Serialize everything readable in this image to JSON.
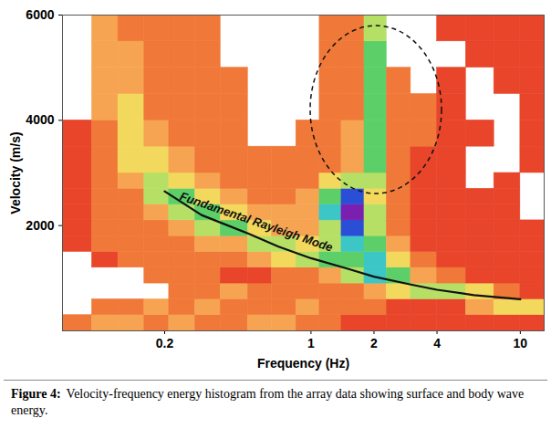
{
  "chart_data": {
    "type": "heatmap",
    "xlabel": "Frequency (Hz)",
    "ylabel": "Velocity (m/s)",
    "log": "x",
    "grid": false,
    "xlim": [
      0.065,
      13
    ],
    "xticks": [
      0.2,
      1,
      2,
      4,
      10
    ],
    "ylim": [
      0,
      6000
    ],
    "yticks": [
      2000,
      4000,
      6000
    ],
    "x_bins": [
      0.065,
      0.09,
      0.12,
      0.16,
      0.21,
      0.28,
      0.37,
      0.5,
      0.65,
      0.85,
      1.1,
      1.4,
      1.8,
      2.3,
      3,
      4,
      5.5,
      7.5,
      10,
      13
    ],
    "y_bins": [
      0,
      300,
      600,
      900,
      1200,
      1500,
      1800,
      2100,
      2400,
      2700,
      3000,
      3500,
      4000,
      4500,
      5000,
      5500,
      6000
    ],
    "energy": [
      [
        2,
        3,
        3,
        2,
        3,
        2,
        2,
        3,
        3,
        2,
        2,
        1,
        1,
        1,
        1,
        1,
        1,
        1,
        1
      ],
      [
        null,
        2,
        2,
        3,
        2,
        3,
        2,
        2,
        2,
        3,
        2,
        2,
        2,
        1,
        1,
        1,
        3,
        4,
        4
      ],
      [
        null,
        null,
        null,
        null,
        2,
        2,
        3,
        2,
        2,
        2,
        2,
        2,
        3,
        4,
        5,
        5,
        4,
        2,
        1
      ],
      [
        null,
        null,
        null,
        2,
        2,
        2,
        1,
        1,
        2,
        2,
        3,
        5,
        7,
        6,
        3,
        2,
        1,
        1,
        1
      ],
      [
        null,
        1,
        2,
        2,
        2,
        2,
        2,
        3,
        4,
        5,
        6,
        6,
        7,
        4,
        2,
        1,
        1,
        1,
        1
      ],
      [
        1,
        2,
        2,
        2,
        2,
        3,
        3,
        5,
        5,
        4,
        5,
        7,
        6,
        3,
        1,
        1,
        1,
        1,
        1
      ],
      [
        1,
        2,
        2,
        2,
        3,
        5,
        6,
        4,
        3,
        3,
        5,
        8,
        5,
        2,
        1,
        1,
        1,
        1,
        1
      ],
      [
        1,
        2,
        2,
        3,
        5,
        6,
        4,
        3,
        3,
        3,
        7,
        9,
        5,
        2,
        1,
        1,
        1,
        1,
        null
      ],
      [
        1,
        2,
        2,
        5,
        6,
        4,
        3,
        2,
        2,
        3,
        6,
        8,
        4,
        2,
        1,
        1,
        1,
        1,
        null
      ],
      [
        1,
        2,
        3,
        5,
        4,
        3,
        2,
        2,
        2,
        2,
        4,
        5,
        5,
        2,
        1,
        1,
        null,
        1,
        null
      ],
      [
        1,
        2,
        4,
        4,
        3,
        2,
        2,
        2,
        2,
        2,
        2,
        3,
        6,
        2,
        1,
        1,
        null,
        null,
        1
      ],
      [
        1,
        2,
        4,
        3,
        2,
        2,
        2,
        null,
        null,
        2,
        2,
        3,
        6,
        2,
        2,
        1,
        1,
        null,
        1
      ],
      [
        null,
        3,
        4,
        2,
        2,
        2,
        2,
        null,
        null,
        null,
        2,
        2,
        6,
        2,
        2,
        1,
        null,
        null,
        1
      ],
      [
        null,
        3,
        3,
        2,
        2,
        2,
        2,
        null,
        null,
        null,
        2,
        2,
        6,
        2,
        null,
        1,
        null,
        1,
        1
      ],
      [
        null,
        3,
        3,
        2,
        2,
        2,
        null,
        null,
        null,
        null,
        2,
        2,
        6,
        null,
        null,
        null,
        1,
        1,
        1
      ],
      [
        null,
        3,
        2,
        2,
        2,
        2,
        null,
        null,
        null,
        null,
        2,
        2,
        5,
        null,
        null,
        1,
        1,
        1,
        1
      ]
    ],
    "clim": [
      0,
      9
    ],
    "colors": [
      "#d42d1c",
      "#e8452a",
      "#f07838",
      "#f6a452",
      "#f2d85c",
      "#b6df66",
      "#5ccf68",
      "#3cc6c6",
      "#2a4ed6",
      "#7a1fb0"
    ],
    "series": [
      {
        "name": "Fundamental Rayleigh Mode",
        "type": "line",
        "color": "#111111",
        "x": [
          0.2,
          0.3,
          0.5,
          0.7,
          1,
          1.5,
          2,
          3,
          4,
          6,
          10
        ],
        "values": [
          2650,
          2200,
          1850,
          1600,
          1380,
          1180,
          1030,
          880,
          780,
          680,
          600
        ]
      }
    ],
    "caption_label": "Figure 4:",
    "caption": "Velocity-frequency energy histogram from the array data showing surface and body wave energy."
  }
}
